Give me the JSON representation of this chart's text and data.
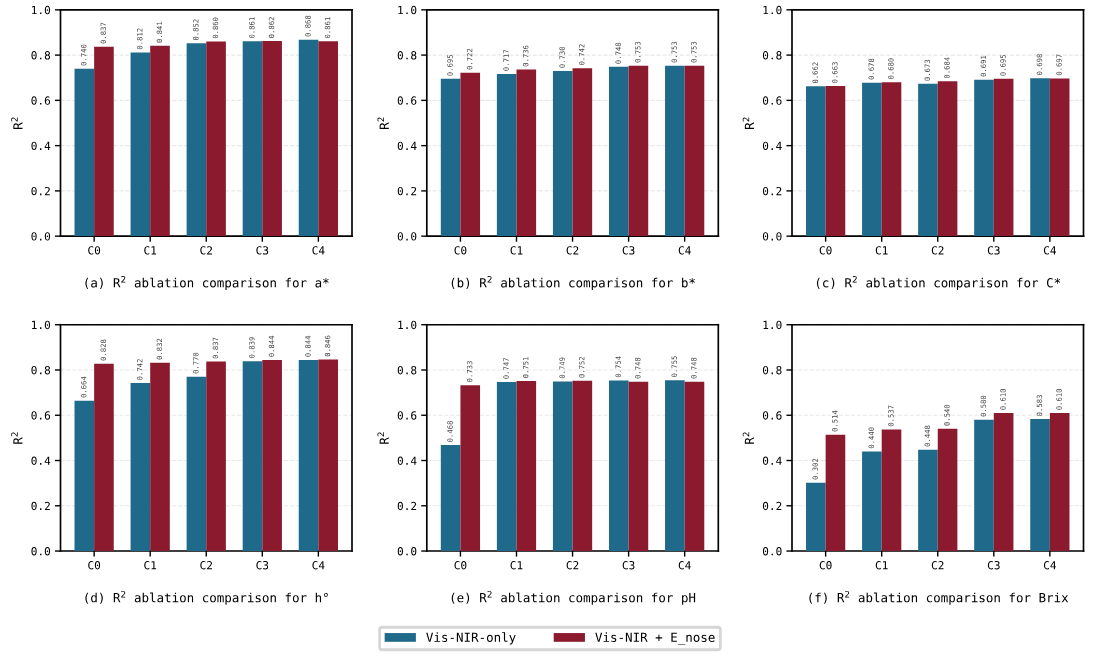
{
  "chart_data": [
    {
      "type": "bar",
      "title": "(a) R$^{2}$ ablation comparison for a*",
      "ylabel": "R$^{2}$",
      "categories": [
        "C0",
        "C1",
        "C2",
        "C3",
        "C4"
      ],
      "ylim": [
        0,
        1
      ],
      "yticks": [
        {
          "value": 0,
          "label": "0.0"
        },
        {
          "value": 0.2,
          "label": "0.2"
        },
        {
          "value": 0.4,
          "label": "0.4"
        },
        {
          "value": 0.6,
          "label": "0.6"
        },
        {
          "value": 0.8,
          "label": "0.8"
        },
        {
          "value": 1,
          "label": "1.0"
        }
      ],
      "grid": "y",
      "series": [
        {
          "color": "#1f6a8a",
          "values": [
            0.74,
            0.812,
            0.852,
            0.861,
            0.868
          ],
          "value_labels": [
            "0.740",
            "0.812",
            "0.852",
            "0.861",
            "0.868"
          ]
        },
        {
          "color": "#8b1a2e",
          "values": [
            0.837,
            0.841,
            0.86,
            0.862,
            0.861
          ],
          "value_labels": [
            "0.837",
            "0.841",
            "0.860",
            "0.862",
            "0.861"
          ]
        }
      ]
    },
    {
      "type": "bar",
      "title": "(b) R$^{2}$ ablation comparison for b*",
      "ylabel": "R$^{2}$",
      "categories": [
        "C0",
        "C1",
        "C2",
        "C3",
        "C4"
      ],
      "ylim": [
        0,
        1
      ],
      "yticks": [
        {
          "value": 0,
          "label": "0.0"
        },
        {
          "value": 0.2,
          "label": "0.2"
        },
        {
          "value": 0.4,
          "label": "0.4"
        },
        {
          "value": 0.6,
          "label": "0.6"
        },
        {
          "value": 0.8,
          "label": "0.8"
        },
        {
          "value": 1,
          "label": "1.0"
        }
      ],
      "grid": "y",
      "series": [
        {
          "color": "#1f6a8a",
          "values": [
            0.695,
            0.717,
            0.73,
            0.748,
            0.753
          ],
          "value_labels": [
            "0.695",
            "0.717",
            "0.730",
            "0.748",
            "0.753"
          ]
        },
        {
          "color": "#8b1a2e",
          "values": [
            0.722,
            0.736,
            0.742,
            0.753,
            0.753
          ],
          "value_labels": [
            "0.722",
            "0.736",
            "0.742",
            "0.753",
            "0.753"
          ]
        }
      ]
    },
    {
      "type": "bar",
      "title": "(c) R$^{2}$ ablation comparison for C*",
      "ylabel": "R$^{2}$",
      "categories": [
        "C0",
        "C1",
        "C2",
        "C3",
        "C4"
      ],
      "ylim": [
        0,
        1
      ],
      "yticks": [
        {
          "value": 0,
          "label": "0.0"
        },
        {
          "value": 0.2,
          "label": "0.2"
        },
        {
          "value": 0.4,
          "label": "0.4"
        },
        {
          "value": 0.6,
          "label": "0.6"
        },
        {
          "value": 0.8,
          "label": "0.8"
        },
        {
          "value": 1,
          "label": "1.0"
        }
      ],
      "grid": "y",
      "series": [
        {
          "color": "#1f6a8a",
          "values": [
            0.662,
            0.678,
            0.673,
            0.691,
            0.698
          ],
          "value_labels": [
            "0.662",
            "0.678",
            "0.673",
            "0.691",
            "0.698"
          ]
        },
        {
          "color": "#8b1a2e",
          "values": [
            0.663,
            0.68,
            0.684,
            0.695,
            0.697
          ],
          "value_labels": [
            "0.663",
            "0.680",
            "0.684",
            "0.695",
            "0.697"
          ]
        }
      ]
    },
    {
      "type": "bar",
      "title": "(d) R$^{2}$ ablation comparison for h°",
      "ylabel": "R$^{2}$",
      "categories": [
        "C0",
        "C1",
        "C2",
        "C3",
        "C4"
      ],
      "ylim": [
        0,
        1
      ],
      "yticks": [
        {
          "value": 0,
          "label": "0.0"
        },
        {
          "value": 0.2,
          "label": "0.2"
        },
        {
          "value": 0.4,
          "label": "0.4"
        },
        {
          "value": 0.6,
          "label": "0.6"
        },
        {
          "value": 0.8,
          "label": "0.8"
        },
        {
          "value": 1,
          "label": "1.0"
        }
      ],
      "grid": "y",
      "series": [
        {
          "color": "#1f6a8a",
          "values": [
            0.664,
            0.742,
            0.77,
            0.839,
            0.844
          ],
          "value_labels": [
            "0.664",
            "0.742",
            "0.770",
            "0.839",
            "0.844"
          ]
        },
        {
          "color": "#8b1a2e",
          "values": [
            0.828,
            0.832,
            0.837,
            0.844,
            0.846
          ],
          "value_labels": [
            "0.828",
            "0.832",
            "0.837",
            "0.844",
            "0.846"
          ]
        }
      ]
    },
    {
      "type": "bar",
      "title": "(e) R$^{2}$ ablation comparison for pH",
      "ylabel": "R$^{2}$",
      "categories": [
        "C0",
        "C1",
        "C2",
        "C3",
        "C4"
      ],
      "ylim": [
        0,
        1
      ],
      "yticks": [
        {
          "value": 0,
          "label": "0.0"
        },
        {
          "value": 0.2,
          "label": "0.2"
        },
        {
          "value": 0.4,
          "label": "0.4"
        },
        {
          "value": 0.6,
          "label": "0.6"
        },
        {
          "value": 0.8,
          "label": "0.8"
        },
        {
          "value": 1,
          "label": "1.0"
        }
      ],
      "grid": "y",
      "legend": "bottom",
      "series": [
        {
          "name": "Vis-NIR-only",
          "color": "#1f6a8a",
          "values": [
            0.468,
            0.747,
            0.749,
            0.754,
            0.755
          ],
          "value_labels": [
            "0.468",
            "0.747",
            "0.749",
            "0.754",
            "0.755"
          ]
        },
        {
          "name": "Vis-NIR + E_nose",
          "color": "#8b1a2e",
          "values": [
            0.733,
            0.751,
            0.752,
            0.748,
            0.748
          ],
          "value_labels": [
            "0.733",
            "0.751",
            "0.752",
            "0.748",
            "0.748"
          ]
        }
      ]
    },
    {
      "type": "bar",
      "title": "(f) R$^{2}$ ablation comparison for Brix",
      "ylabel": "R$^{2}$",
      "categories": [
        "C0",
        "C1",
        "C2",
        "C3",
        "C4"
      ],
      "ylim": [
        0,
        1
      ],
      "yticks": [
        {
          "value": 0,
          "label": "0.0"
        },
        {
          "value": 0.2,
          "label": "0.2"
        },
        {
          "value": 0.4,
          "label": "0.4"
        },
        {
          "value": 0.6,
          "label": "0.6"
        },
        {
          "value": 0.8,
          "label": "0.8"
        },
        {
          "value": 1,
          "label": "1.0"
        }
      ],
      "grid": "y",
      "series": [
        {
          "color": "#1f6a8a",
          "values": [
            0.302,
            0.44,
            0.448,
            0.58,
            0.583
          ],
          "value_labels": [
            "0.302",
            "0.440",
            "0.448",
            "0.580",
            "0.583"
          ]
        },
        {
          "color": "#8b1a2e",
          "values": [
            0.514,
            0.537,
            0.54,
            0.61,
            0.61
          ],
          "value_labels": [
            "0.514",
            "0.537",
            "0.540",
            "0.610",
            "0.610"
          ]
        }
      ]
    }
  ]
}
